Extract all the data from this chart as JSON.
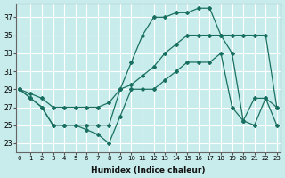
{
  "xlabel": "Humidex (Indice chaleur)",
  "bg_color": "#c8ecec",
  "grid_color": "#ffffff",
  "line_color": "#1a7060",
  "xlim": [
    -0.3,
    23.3
  ],
  "ylim": [
    22.0,
    38.5
  ],
  "xticks": [
    0,
    1,
    2,
    3,
    4,
    5,
    6,
    7,
    8,
    9,
    10,
    11,
    12,
    13,
    14,
    15,
    16,
    17,
    18,
    19,
    20,
    21,
    22,
    23
  ],
  "yticks": [
    23,
    25,
    27,
    29,
    31,
    33,
    35,
    37
  ],
  "line1_x": [
    0,
    1,
    2,
    3,
    4,
    5,
    6,
    7,
    8,
    9,
    10,
    11,
    12,
    13,
    14,
    15,
    16,
    17,
    18,
    19,
    20,
    21,
    22,
    23
  ],
  "line1_y": [
    29,
    28,
    27,
    25,
    25,
    25,
    24.5,
    24,
    23,
    26,
    29,
    29,
    29,
    30,
    31,
    32,
    32,
    32,
    33,
    27,
    25.5,
    28,
    28,
    27
  ],
  "line2_x": [
    0,
    1,
    2,
    3,
    4,
    5,
    6,
    7,
    8,
    9,
    10,
    11,
    12,
    13,
    14,
    15,
    16,
    17,
    18,
    19,
    20,
    21,
    22,
    23
  ],
  "line2_y": [
    29,
    28.5,
    28,
    27,
    27,
    27,
    27,
    27,
    27.5,
    29,
    29.5,
    30.5,
    31.5,
    33,
    34,
    35,
    35,
    35,
    35,
    35,
    35,
    35,
    35,
    27
  ],
  "line3_x": [
    0,
    1,
    2,
    3,
    4,
    5,
    6,
    7,
    8,
    9,
    10,
    11,
    12,
    13,
    14,
    15,
    16,
    17,
    18,
    19,
    20,
    21,
    22,
    23
  ],
  "line3_y": [
    29,
    28,
    27,
    25,
    25,
    25,
    25,
    25,
    25,
    29,
    32,
    35,
    37,
    37,
    37.5,
    37.5,
    38,
    38,
    35,
    33,
    25.5,
    25,
    28,
    25
  ]
}
